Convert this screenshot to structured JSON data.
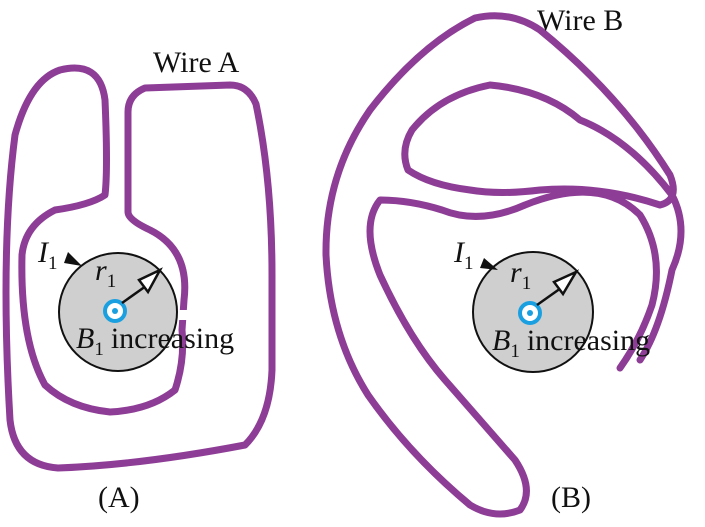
{
  "colors": {
    "wire": "#8e3d96",
    "field_marker": "#1aa0e0",
    "flux_region": "#cfcfcf",
    "text": "#111111"
  },
  "panel_a": {
    "wire_label": "Wire A",
    "current_symbol": "I",
    "current_subscript": "1",
    "radius_symbol": "r",
    "radius_subscript": "1",
    "field_symbol": "B",
    "field_subscript": "1",
    "field_state": "increasing",
    "caption": "(A)"
  },
  "panel_b": {
    "wire_label": "Wire B",
    "current_symbol": "I",
    "current_subscript": "1",
    "radius_symbol": "r",
    "radius_subscript": "1",
    "field_symbol": "B",
    "field_subscript": "1",
    "field_state": "increasing",
    "caption": "(B)"
  },
  "icons": {
    "field_direction": "field-out-of-page-icon",
    "current_direction": "current-arrow-icon",
    "radius_indicator": "radius-arrow-icon"
  }
}
